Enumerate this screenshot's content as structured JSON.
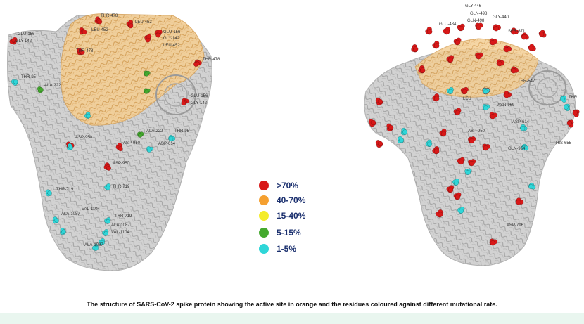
{
  "figure": {
    "caption": "The structure of SARS-CoV-2 spike protein showing the active site in orange and the residues coloured against different mutational rate.",
    "colors": {
      "protein_grey": "#c9c9c9",
      "protein_shadow": "#8f8f8f",
      "active_site_orange": "#f2c98a",
      "gt70": "#d81818",
      "r40_70": "#f5a030",
      "r15_40": "#f4ec2a",
      "r5_15": "#44a92e",
      "r1_5": "#2fd6d8"
    }
  },
  "legend": {
    "items": [
      {
        "label": ">70%",
        "color": "#d81818"
      },
      {
        "label": "40-70%",
        "color": "#f5a030"
      },
      {
        "label": "15-40%",
        "color": "#f4ec2a"
      },
      {
        "label": "5-15%",
        "color": "#44a92e"
      },
      {
        "label": "1-5%",
        "color": "#2fd6d8"
      }
    ]
  },
  "left_structure": {
    "labels": [
      "THR-478",
      "LEU-452",
      "LEU-452",
      "GLU-156",
      "GLY-142",
      "GLU-156",
      "GLY-142",
      "LEU-452",
      "THR-478",
      "THR-478",
      "THR-95",
      "ALA-222",
      "GLU-156",
      "GLY-142",
      "ASP-950",
      "ASP-950",
      "ALA-222",
      "THR-95",
      "ASP-614",
      "ASP-950",
      "THR-719",
      "THR-719",
      "ALA-1087",
      "VAL-1104",
      "THR-719",
      "ALA-1087",
      "VAL-1104",
      "ALA-1087"
    ]
  },
  "right_structure": {
    "labels": [
      "GLY-446",
      "GLN-498",
      "GLY-440",
      "GLU-484",
      "GLN-498",
      "SER-371",
      "LEU",
      "THR-547",
      "THR",
      "ASN-969",
      "ASP-950",
      "ASP-614",
      "GLN-954",
      "HIS-655",
      "ASP-796"
    ]
  }
}
